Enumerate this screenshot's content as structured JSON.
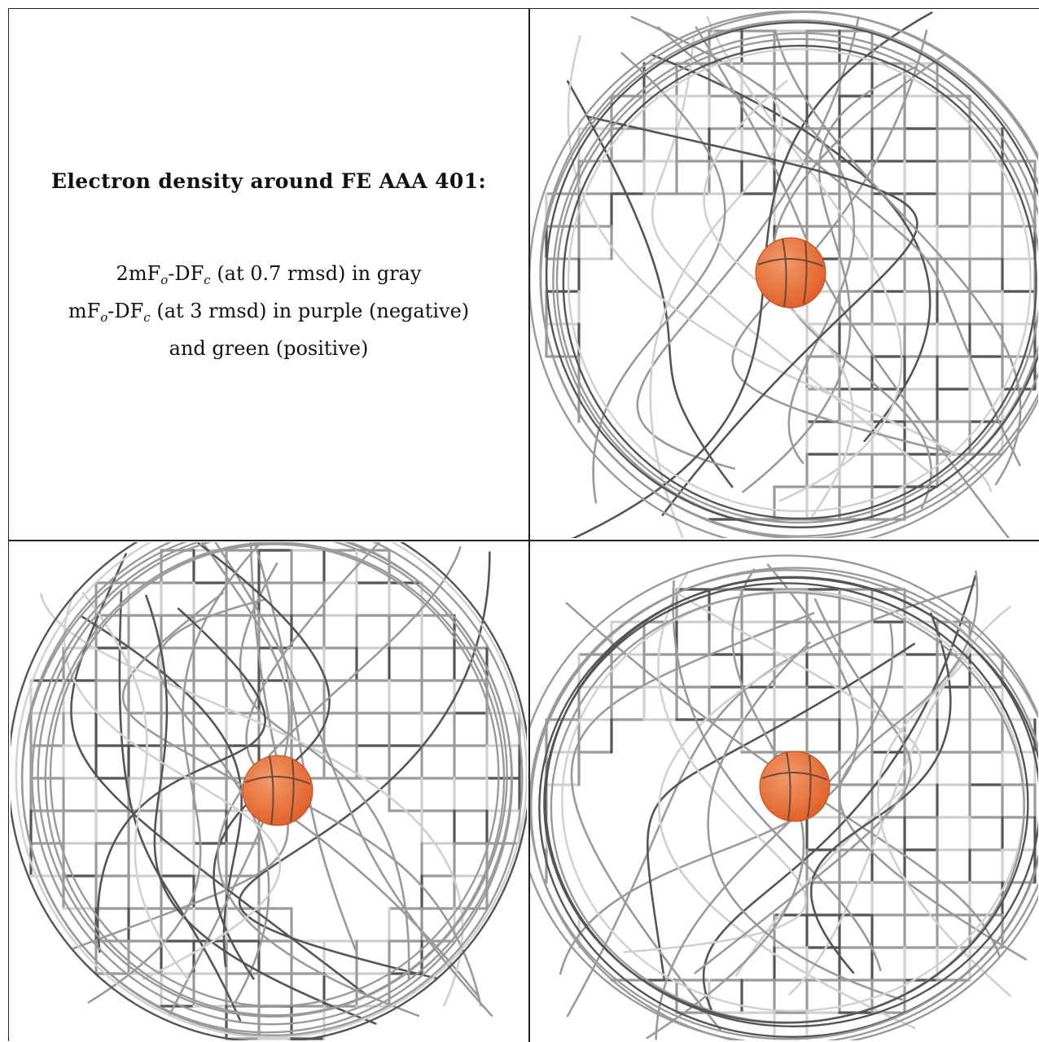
{
  "title": "Electron density around FE AAA 401:",
  "legend": {
    "line1": {
      "pre": "2mF",
      "sub1": "o",
      "mid": "-DF",
      "sub2": "c",
      "post": " (at 0.7 rmsd) in gray"
    },
    "line2": {
      "pre": "mF",
      "sub1": "o",
      "mid": "-DF",
      "sub2": "c",
      "post": " (at 3 rmsd) in purple (negative)"
    },
    "line3": "and green (positive)"
  },
  "colors": {
    "mesh": "#9a9a9a",
    "mesh_dark": "#555555",
    "mesh_light": "#d0d0d0",
    "atom": "#e2622a",
    "atom_highlight": "#f29a6a",
    "border": "#222222"
  },
  "panels": [
    "top-right view",
    "bottom-left view",
    "bottom-right view"
  ]
}
